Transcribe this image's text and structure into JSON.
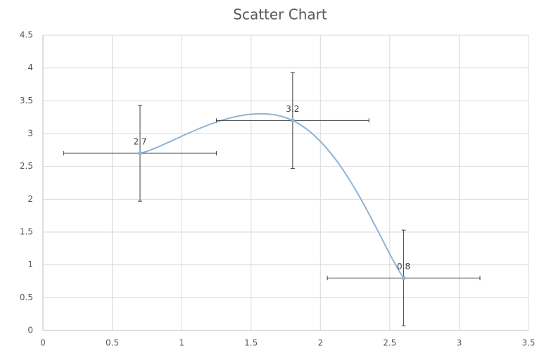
{
  "chart_data": {
    "type": "scatter",
    "title": "Scatter Chart",
    "x": [
      0.7,
      1.8,
      2.6
    ],
    "series": [
      {
        "color": "#8fb4d6",
        "values": [
          2.7,
          3.2,
          0.8
        ],
        "x_error": [
          0.55,
          0.55,
          0.55
        ],
        "y_error": [
          0.73,
          0.73,
          0.73
        ]
      }
    ],
    "smooth": true,
    "data_labels": true,
    "error_bar_color": "#404040",
    "xlim": [
      0,
      3.5
    ],
    "xticks": [
      0,
      0.5,
      1,
      1.5,
      2,
      2.5,
      3,
      3.5
    ],
    "ylim": [
      0,
      4.5
    ],
    "yticks": [
      0,
      0.5,
      1,
      1.5,
      2,
      2.5,
      3,
      3.5,
      4,
      4.5
    ],
    "grid": true
  }
}
